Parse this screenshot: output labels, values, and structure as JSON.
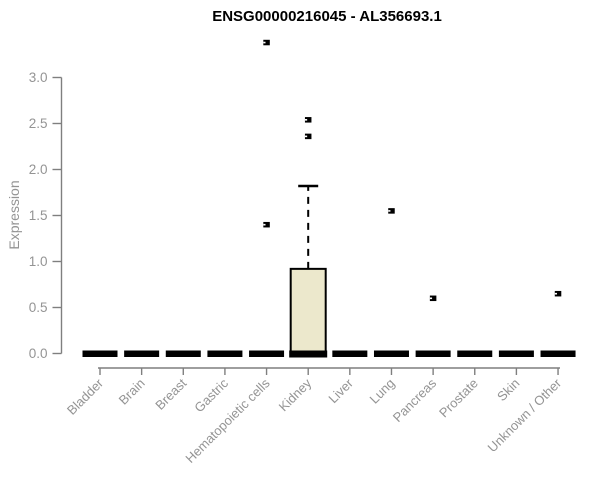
{
  "chart_data": {
    "type": "box",
    "title": "ENSG00000216045 - AL356693.1",
    "ylabel": "Expression",
    "xlabel": "",
    "yticks": [
      0.0,
      0.5,
      1.0,
      1.5,
      2.0,
      2.5,
      3.0
    ],
    "ylim": [
      0,
      3.45
    ],
    "grid": false,
    "legend": null,
    "categories": [
      "Bladder",
      "Brain",
      "Breast",
      "Gastric",
      "Hematopoietic cells",
      "Kidney",
      "Liver",
      "Lung",
      "Pancreas",
      "Prostate",
      "Skin",
      "Unknown / Other"
    ],
    "boxes": [
      {
        "category": "Bladder",
        "q1": 0,
        "median": 0,
        "q3": 0,
        "whisker_low": 0,
        "whisker_high": 0,
        "outliers": []
      },
      {
        "category": "Brain",
        "q1": 0,
        "median": 0,
        "q3": 0,
        "whisker_low": 0,
        "whisker_high": 0,
        "outliers": []
      },
      {
        "category": "Breast",
        "q1": 0,
        "median": 0,
        "q3": 0,
        "whisker_low": 0,
        "whisker_high": 0,
        "outliers": []
      },
      {
        "category": "Gastric",
        "q1": 0,
        "median": 0,
        "q3": 0,
        "whisker_low": 0,
        "whisker_high": 0,
        "outliers": []
      },
      {
        "category": "Hematopoietic cells",
        "q1": 0,
        "median": 0,
        "q3": 0,
        "whisker_low": 0,
        "whisker_high": 0,
        "outliers": [
          1.4,
          3.38
        ]
      },
      {
        "category": "Kidney",
        "q1": 0,
        "median": 0,
        "q3": 0.92,
        "whisker_low": 0,
        "whisker_high": 1.82,
        "outliers": [
          2.36,
          2.54
        ]
      },
      {
        "category": "Liver",
        "q1": 0,
        "median": 0,
        "q3": 0,
        "whisker_low": 0,
        "whisker_high": 0,
        "outliers": []
      },
      {
        "category": "Lung",
        "q1": 0,
        "median": 0,
        "q3": 0,
        "whisker_low": 0,
        "whisker_high": 0,
        "outliers": [
          1.55
        ]
      },
      {
        "category": "Pancreas",
        "q1": 0,
        "median": 0,
        "q3": 0,
        "whisker_low": 0,
        "whisker_high": 0,
        "outliers": [
          0.6
        ]
      },
      {
        "category": "Prostate",
        "q1": 0,
        "median": 0,
        "q3": 0,
        "whisker_low": 0,
        "whisker_high": 0,
        "outliers": []
      },
      {
        "category": "Skin",
        "q1": 0,
        "median": 0,
        "q3": 0,
        "whisker_low": 0,
        "whisker_high": 0,
        "outliers": []
      },
      {
        "category": "Unknown / Other",
        "q1": 0,
        "median": 0,
        "q3": 0,
        "whisker_low": 0,
        "whisker_high": 0,
        "outliers": [
          0.65
        ]
      }
    ],
    "colors": {
      "title": "#000000",
      "axis": "#7F7F7F",
      "tick_label": "#949494",
      "box_fill": "#ECE8CC",
      "box_border": "#000000",
      "marker": "#000000",
      "background": "#FFFFFF"
    }
  }
}
